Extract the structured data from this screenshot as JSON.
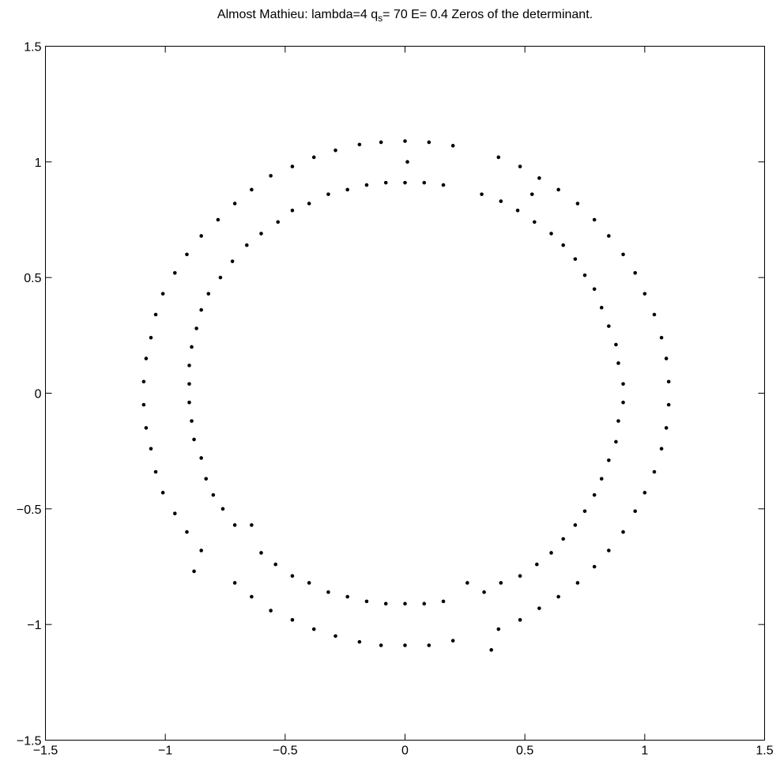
{
  "chart_data": {
    "type": "scatter",
    "title": {
      "prefix": "Almost Mathieu: lambda=4 q",
      "subscript": "s",
      "suffix": "= 70 E= 0.4 Zeros of the determinant."
    },
    "xlabel": "",
    "ylabel": "",
    "xlim": [
      -1.5,
      1.5
    ],
    "ylim": [
      -1.5,
      1.5
    ],
    "xticks": [
      -1.5,
      -1,
      -0.5,
      0,
      0.5,
      1,
      1.5
    ],
    "yticks": [
      -1.5,
      -1,
      -0.5,
      0,
      0.5,
      1,
      1.5
    ],
    "tick_labels": {
      "x": [
        "−1.5",
        "−1",
        "−0.5",
        "0",
        "0.5",
        "1",
        "1.5"
      ],
      "y": [
        "−1.5",
        "−1",
        "−0.5",
        "0",
        "0.5",
        "1",
        "1.5"
      ]
    },
    "grid": false,
    "marker_color": "#000000",
    "series": [
      {
        "points": [
          [
            0.0,
            1.09
          ],
          [
            0.1,
            1.085
          ],
          [
            0.2,
            1.07
          ],
          [
            0.39,
            1.02
          ],
          [
            0.48,
            0.98
          ],
          [
            0.56,
            0.93
          ],
          [
            0.64,
            0.88
          ],
          [
            0.72,
            0.82
          ],
          [
            0.79,
            0.75
          ],
          [
            0.85,
            0.68
          ],
          [
            0.91,
            0.6
          ],
          [
            0.96,
            0.52
          ],
          [
            1.0,
            0.43
          ],
          [
            1.04,
            0.34
          ],
          [
            1.07,
            0.24
          ],
          [
            1.09,
            0.15
          ],
          [
            1.1,
            0.05
          ],
          [
            1.1,
            -0.05
          ],
          [
            1.09,
            -0.15
          ],
          [
            1.07,
            -0.24
          ],
          [
            1.04,
            -0.34
          ],
          [
            1.0,
            -0.43
          ],
          [
            0.96,
            -0.51
          ],
          [
            0.91,
            -0.6
          ],
          [
            0.85,
            -0.68
          ],
          [
            0.79,
            -0.75
          ],
          [
            0.72,
            -0.82
          ],
          [
            0.64,
            -0.88
          ],
          [
            0.56,
            -0.93
          ],
          [
            0.48,
            -0.98
          ],
          [
            0.39,
            -1.02
          ],
          [
            0.36,
            -1.11
          ],
          [
            0.2,
            -1.07
          ],
          [
            0.1,
            -1.09
          ],
          [
            0.0,
            -1.09
          ],
          [
            -0.1,
            -1.09
          ],
          [
            -0.19,
            -1.075
          ],
          [
            -0.29,
            -1.05
          ],
          [
            -0.38,
            -1.02
          ],
          [
            -0.47,
            -0.98
          ],
          [
            -0.56,
            -0.94
          ],
          [
            -0.64,
            -0.88
          ],
          [
            -0.71,
            -0.82
          ],
          [
            -0.88,
            -0.77
          ],
          [
            -0.85,
            -0.68
          ],
          [
            -0.91,
            -0.6
          ],
          [
            -0.96,
            -0.52
          ],
          [
            -1.01,
            -0.43
          ],
          [
            -1.04,
            -0.34
          ],
          [
            -1.06,
            -0.24
          ],
          [
            -1.08,
            -0.15
          ],
          [
            -1.09,
            -0.05
          ],
          [
            -1.09,
            0.05
          ],
          [
            -1.08,
            0.15
          ],
          [
            -1.06,
            0.24
          ],
          [
            -1.04,
            0.34
          ],
          [
            -1.01,
            0.43
          ],
          [
            -0.96,
            0.52
          ],
          [
            -0.91,
            0.6
          ],
          [
            -0.85,
            0.68
          ],
          [
            -0.78,
            0.75
          ],
          [
            -0.71,
            0.82
          ],
          [
            -0.64,
            0.88
          ],
          [
            -0.56,
            0.94
          ],
          [
            -0.47,
            0.98
          ],
          [
            -0.38,
            1.02
          ],
          [
            -0.29,
            1.05
          ],
          [
            -0.19,
            1.075
          ],
          [
            -0.1,
            1.085
          ],
          [
            0.01,
            1.0
          ],
          [
            0.0,
            0.91
          ],
          [
            0.08,
            0.91
          ],
          [
            0.16,
            0.9
          ],
          [
            0.32,
            0.86
          ],
          [
            0.4,
            0.83
          ],
          [
            0.47,
            0.79
          ],
          [
            0.53,
            0.86
          ],
          [
            0.54,
            0.74
          ],
          [
            0.61,
            0.69
          ],
          [
            0.66,
            0.64
          ],
          [
            0.71,
            0.58
          ],
          [
            0.75,
            0.51
          ],
          [
            0.79,
            0.45
          ],
          [
            0.82,
            0.37
          ],
          [
            0.85,
            0.29
          ],
          [
            0.88,
            0.21
          ],
          [
            0.89,
            0.13
          ],
          [
            0.91,
            0.04
          ],
          [
            0.91,
            -0.04
          ],
          [
            0.89,
            -0.12
          ],
          [
            0.88,
            -0.21
          ],
          [
            0.85,
            -0.29
          ],
          [
            0.82,
            -0.37
          ],
          [
            0.79,
            -0.44
          ],
          [
            0.75,
            -0.51
          ],
          [
            0.71,
            -0.57
          ],
          [
            0.66,
            -0.63
          ],
          [
            0.61,
            -0.69
          ],
          [
            0.55,
            -0.74
          ],
          [
            0.48,
            -0.79
          ],
          [
            0.4,
            -0.82
          ],
          [
            0.33,
            -0.86
          ],
          [
            0.26,
            -0.82
          ],
          [
            0.16,
            -0.9
          ],
          [
            0.08,
            -0.91
          ],
          [
            0.0,
            -0.91
          ],
          [
            -0.08,
            -0.91
          ],
          [
            -0.16,
            -0.9
          ],
          [
            -0.24,
            -0.88
          ],
          [
            -0.32,
            -0.86
          ],
          [
            -0.4,
            -0.82
          ],
          [
            -0.47,
            -0.79
          ],
          [
            -0.54,
            -0.74
          ],
          [
            -0.6,
            -0.69
          ],
          [
            -0.64,
            -0.57
          ],
          [
            -0.71,
            -0.57
          ],
          [
            -0.76,
            -0.5
          ],
          [
            -0.8,
            -0.44
          ],
          [
            -0.83,
            -0.37
          ],
          [
            -0.85,
            -0.28
          ],
          [
            -0.88,
            -0.2
          ],
          [
            -0.89,
            -0.12
          ],
          [
            -0.9,
            -0.04
          ],
          [
            -0.9,
            0.04
          ],
          [
            -0.9,
            0.12
          ],
          [
            -0.89,
            0.2
          ],
          [
            -0.87,
            0.28
          ],
          [
            -0.85,
            0.36
          ],
          [
            -0.82,
            0.43
          ],
          [
            -0.77,
            0.5
          ],
          [
            -0.72,
            0.57
          ],
          [
            -0.66,
            0.64
          ],
          [
            -0.6,
            0.69
          ],
          [
            -0.53,
            0.74
          ],
          [
            -0.47,
            0.79
          ],
          [
            -0.4,
            0.82
          ],
          [
            -0.32,
            0.86
          ],
          [
            -0.24,
            0.88
          ],
          [
            -0.16,
            0.9
          ],
          [
            -0.08,
            0.91
          ]
        ]
      }
    ]
  }
}
